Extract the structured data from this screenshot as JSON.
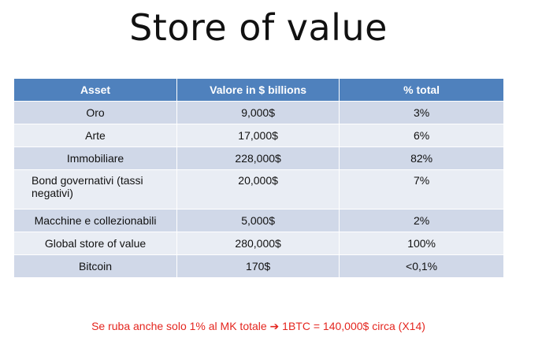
{
  "slide": {
    "title": "Store of value",
    "footnote": "Se ruba anche solo 1% al MK totale ➔ 1BTC = 140,000$ circa (X14)"
  },
  "table": {
    "headers": [
      "Asset",
      "Valore in $ billions",
      "% total"
    ],
    "rows": [
      {
        "asset": "Oro",
        "value": "9,000$",
        "pct": "3%"
      },
      {
        "asset": "Arte",
        "value": "17,000$",
        "pct": "6%"
      },
      {
        "asset": "Immobiliare",
        "value": "228,000$",
        "pct": "82%"
      },
      {
        "asset": "Bond governativi (tassi negativi)",
        "value": "20,000$",
        "pct": "7%"
      },
      {
        "asset": "Macchine e collezionabili",
        "value": "5,000$",
        "pct": "2%"
      },
      {
        "asset": "Global store of value",
        "value": "280,000$",
        "pct": "100%"
      },
      {
        "asset": "Bitcoin",
        "value": "170$",
        "pct": "<0,1%"
      }
    ]
  },
  "colors": {
    "header_bg": "#4f81bd",
    "row_dark": "#d0d8e8",
    "row_light": "#e9edf4",
    "footnote": "#e4261f"
  }
}
